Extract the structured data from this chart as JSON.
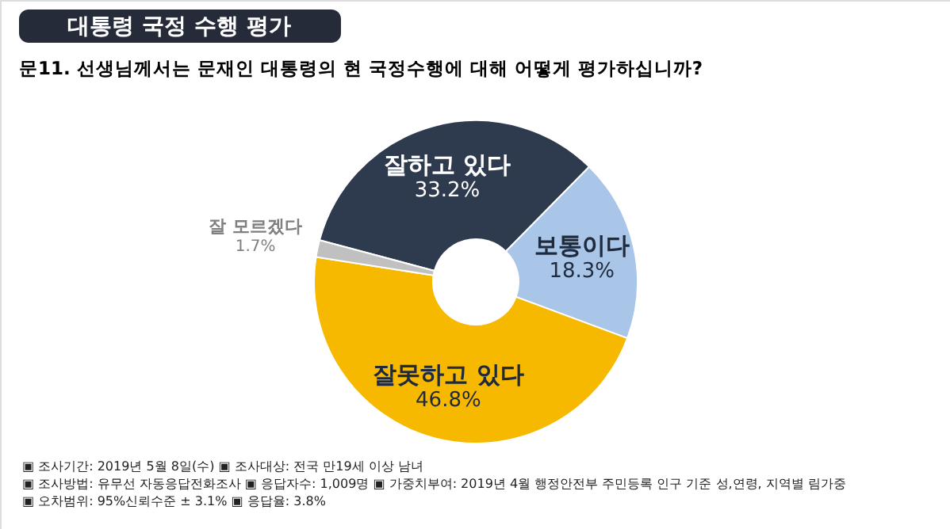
{
  "chart_data": {
    "type": "donut",
    "title": "대통령 국정 수행 평가",
    "subtitle": "문11. 선생님께서는 문재인 대통령의 현 국정수행에 대해 어떻게 평가하십니까?",
    "categories": [
      "잘하고 있다",
      "보통이다",
      "잘못하고 있다",
      "잘 모르겠다"
    ],
    "values": [
      33.2,
      18.3,
      46.8,
      1.7
    ],
    "value_labels": [
      "33.2%",
      "18.3%",
      "46.8%",
      "1.7%"
    ],
    "colors": [
      "#2e3a4e",
      "#a9c5e8",
      "#f7b800",
      "#c0c0c0"
    ],
    "annotations": [
      "▣ 조사기간: 2019년 5월 8일(수) ▣ 조사대상: 전국 만19세 이상 남녀",
      "▣ 조사방법: 유무선 자동응답전화조사 ▣ 응답자수: 1,009명 ▣ 가중치부여: 2019년 4월 행정안전부 주민등록 인구 기준 성,연령, 지역별 림가중",
      "▣ 오차범위: 95%신뢰수준 ± 3.1% ▣ 응답율: 3.8%"
    ]
  }
}
